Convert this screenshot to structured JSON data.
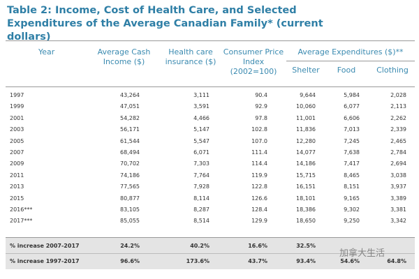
{
  "title": "Table 2: Income, Cost of Health Care, and Selected Expenditures of the Average Canadian Family* (current dollars)",
  "header": {
    "columns": [
      "Year",
      "Average Cash Income ($)",
      "Health care insurance ($)",
      "Consumer Price Index (2002=100)"
    ],
    "group": "Average Expenditures ($)**",
    "subcolumns": [
      "Shelter",
      "Food",
      "Clothing"
    ]
  },
  "table": {
    "rows": [
      [
        "1997",
        "43,264",
        "3,111",
        "90.4",
        "9,644",
        "5,984",
        "2,028"
      ],
      [
        "1999",
        "47,051",
        "3,591",
        "92.9",
        "10,060",
        "6,077",
        "2,113"
      ],
      [
        "2001",
        "54,282",
        "4,466",
        "97.8",
        "11,001",
        "6,606",
        "2,262"
      ],
      [
        "2003",
        "56,171",
        "5,147",
        "102.8",
        "11,836",
        "7,013",
        "2,339"
      ],
      [
        "2005",
        "61,544",
        "5,547",
        "107.0",
        "12,280",
        "7,245",
        "2,465"
      ],
      [
        "2007",
        "68,494",
        "6,071",
        "111.4",
        "14,077",
        "7,638",
        "2,784"
      ],
      [
        "2009",
        "70,702",
        "7,303",
        "114.4",
        "14,186",
        "7,417",
        "2,694"
      ],
      [
        "2011",
        "74,186",
        "7,764",
        "119.9",
        "15,715",
        "8,465",
        "3,038"
      ],
      [
        "2013",
        "77,565",
        "7,928",
        "122.8",
        "16,151",
        "8,151",
        "3,937"
      ],
      [
        "2015",
        "80,877",
        "8,114",
        "126.6",
        "18,101",
        "9,165",
        "3,389"
      ],
      [
        "2016***",
        "83,105",
        "8,287",
        "128.4",
        "18,386",
        "9,302",
        "3,381"
      ],
      [
        "2017***",
        "85,055",
        "8,514",
        "129.9",
        "18,650",
        "9,250",
        "3,342"
      ]
    ],
    "summary": [
      [
        "% increase 2007-2017",
        "24.2%",
        "40.2%",
        "16.6%",
        "32.5%"
      ],
      [
        "% increase 1997-2017",
        "96.6%",
        "173.6%",
        "43.7%",
        "93.4%",
        "54.6%",
        "64.8%"
      ]
    ]
  },
  "watermark": "加拿大生活"
}
